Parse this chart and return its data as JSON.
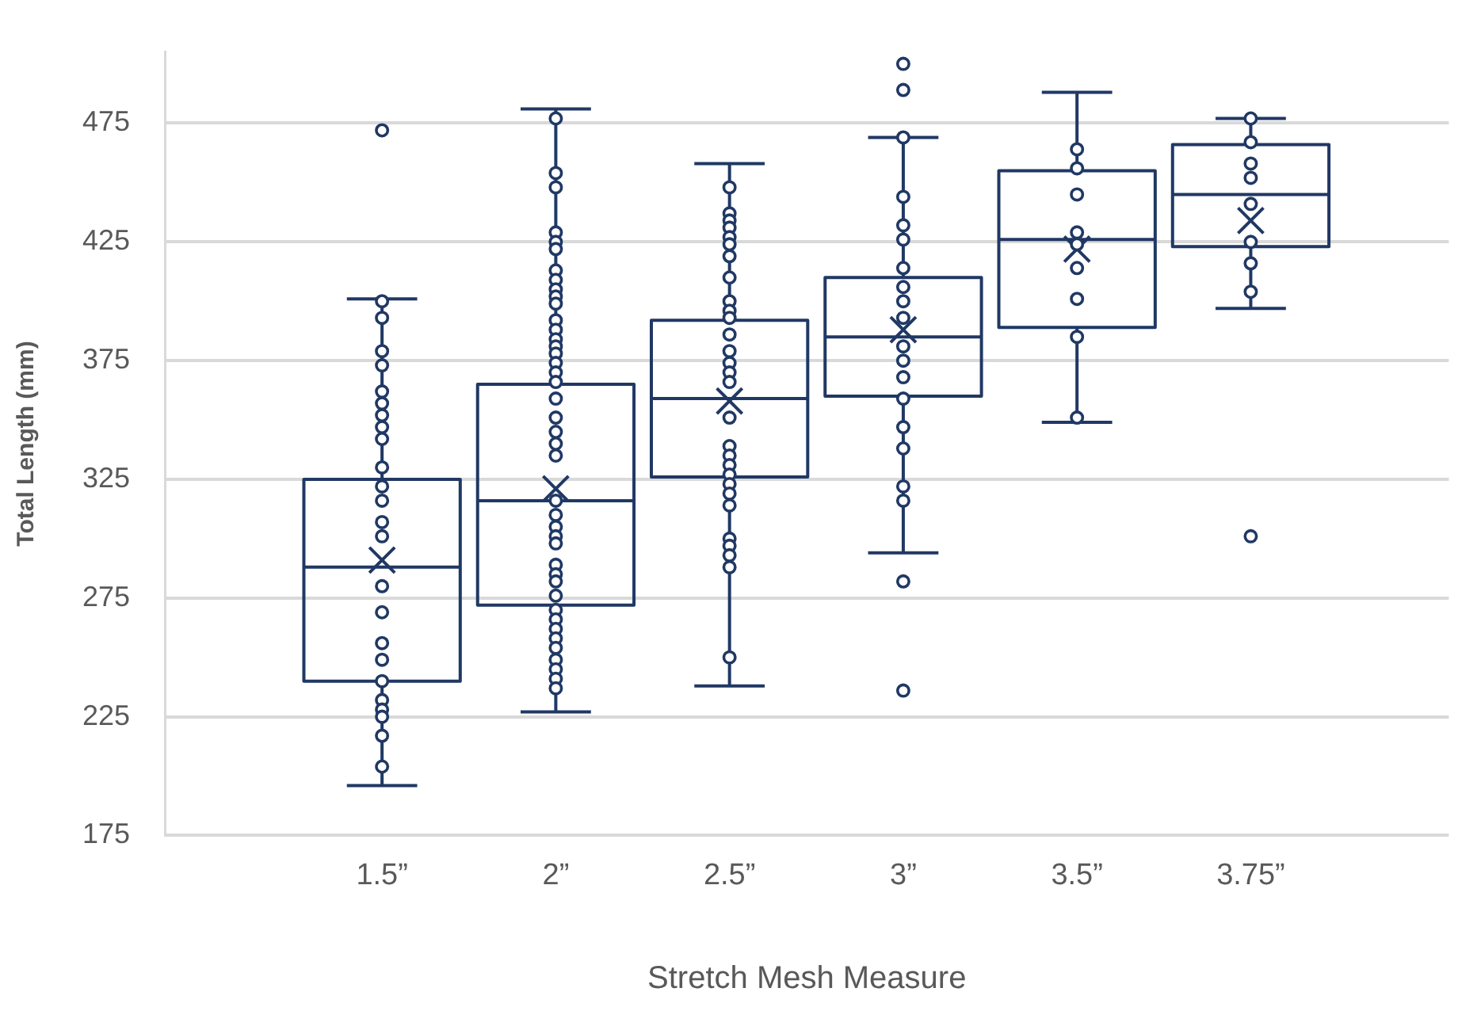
{
  "chart_data": {
    "type": "box",
    "xlabel": "Stretch Mesh Measure",
    "ylabel": "Total Length (mm)",
    "categories": [
      "1.5”",
      "2”",
      "2.5”",
      "3”",
      "3.5”",
      "3.75”"
    ],
    "ylim": [
      175,
      505
    ],
    "yticks": [
      175,
      225,
      275,
      325,
      375,
      425,
      475
    ],
    "grid": "y",
    "marker": "circle",
    "series": [
      {
        "color": "#203864",
        "boxes": [
          {
            "low": 196,
            "q1": 240,
            "median": 288,
            "q3": 325,
            "high": 401,
            "mean": 291,
            "outliers": [
              472
            ]
          },
          {
            "low": 227,
            "q1": 272,
            "median": 316,
            "q3": 365,
            "high": 481,
            "mean": 321
          },
          {
            "low": 238,
            "q1": 326,
            "median": 359,
            "q3": 392,
            "high": 458,
            "mean": 358
          },
          {
            "low": 294,
            "q1": 360,
            "median": 385,
            "q3": 410,
            "high": 469,
            "mean": 388,
            "outliers": [
              500,
              489,
              282,
              236
            ]
          },
          {
            "low": 349,
            "q1": 389,
            "median": 426,
            "q3": 455,
            "high": 488,
            "mean": 422
          },
          {
            "low": 397,
            "q1": 423,
            "median": 445,
            "q3": 466,
            "high": 477,
            "mean": 434,
            "outliers": [
              301
            ]
          }
        ]
      },
      {
        "type": "scatter",
        "color": "#203864",
        "x": [
          "1.5”",
          "1.5”",
          "1.5”",
          "1.5”",
          "1.5”",
          "1.5”",
          "1.5”",
          "1.5”",
          "1.5”",
          "1.5”",
          "1.5”",
          "1.5”",
          "1.5”",
          "1.5”",
          "1.5”",
          "1.5”",
          "1.5”",
          "1.5”",
          "1.5”",
          "1.5”",
          "1.5”",
          "1.5”",
          "1.5”",
          "1.5”",
          "2”",
          "2”",
          "2”",
          "2”",
          "2”",
          "2”",
          "2”",
          "2”",
          "2”",
          "2”",
          "2”",
          "2”",
          "2”",
          "2”",
          "2”",
          "2”",
          "2”",
          "2”",
          "2”",
          "2”",
          "2”",
          "2”",
          "2”",
          "2”",
          "2”",
          "2”",
          "2”",
          "2”",
          "2”",
          "2”",
          "2”",
          "2”",
          "2”",
          "2”",
          "2”",
          "2”",
          "2”",
          "2”",
          "2”",
          "2”",
          "2”",
          "2”",
          "2.5”",
          "2.5”",
          "2.5”",
          "2.5”",
          "2.5”",
          "2.5”",
          "2.5”",
          "2.5”",
          "2.5”",
          "2.5”",
          "2.5”",
          "2.5”",
          "2.5”",
          "2.5”",
          "2.5”",
          "2.5”",
          "2.5”",
          "2.5”",
          "2.5”",
          "2.5”",
          "2.5”",
          "2.5”",
          "2.5”",
          "2.5”",
          "2.5”",
          "2.5”",
          "2.5”",
          "2.5”",
          "2.5”",
          "3”",
          "3”",
          "3”",
          "3”",
          "3”",
          "3”",
          "3”",
          "3”",
          "3”",
          "3”",
          "3”",
          "3”",
          "3”",
          "3”",
          "3”",
          "3”",
          "3.5”",
          "3.5”",
          "3.5”",
          "3.5”",
          "3.5”",
          "3.5”",
          "3.5”",
          "3.5”",
          "3.5”",
          "3.75”",
          "3.75”",
          "3.75”",
          "3.75”",
          "3.75”",
          "3.75”",
          "3.75”",
          "3.75”"
        ],
        "values": [
          400,
          393,
          379,
          373,
          362,
          357,
          352,
          347,
          342,
          330,
          322,
          316,
          307,
          301,
          280,
          269,
          256,
          249,
          240,
          232,
          228,
          225,
          217,
          204,
          477,
          454,
          448,
          429,
          425,
          422,
          413,
          409,
          405,
          402,
          399,
          392,
          388,
          384,
          381,
          378,
          374,
          370,
          366,
          359,
          351,
          345,
          340,
          335,
          316,
          310,
          305,
          301,
          298,
          289,
          285,
          282,
          276,
          270,
          266,
          262,
          258,
          254,
          249,
          245,
          241,
          237,
          448,
          437,
          434,
          431,
          427,
          424,
          419,
          410,
          400,
          396,
          393,
          386,
          379,
          374,
          370,
          366,
          351,
          339,
          335,
          331,
          327,
          323,
          319,
          314,
          300,
          297,
          293,
          288,
          250,
          469,
          444,
          432,
          426,
          414,
          406,
          400,
          393,
          381,
          375,
          368,
          359,
          347,
          338,
          322,
          316,
          464,
          456,
          445,
          429,
          424,
          414,
          401,
          385,
          351,
          477,
          467,
          458,
          452,
          441,
          425,
          416,
          404
        ]
      }
    ]
  }
}
